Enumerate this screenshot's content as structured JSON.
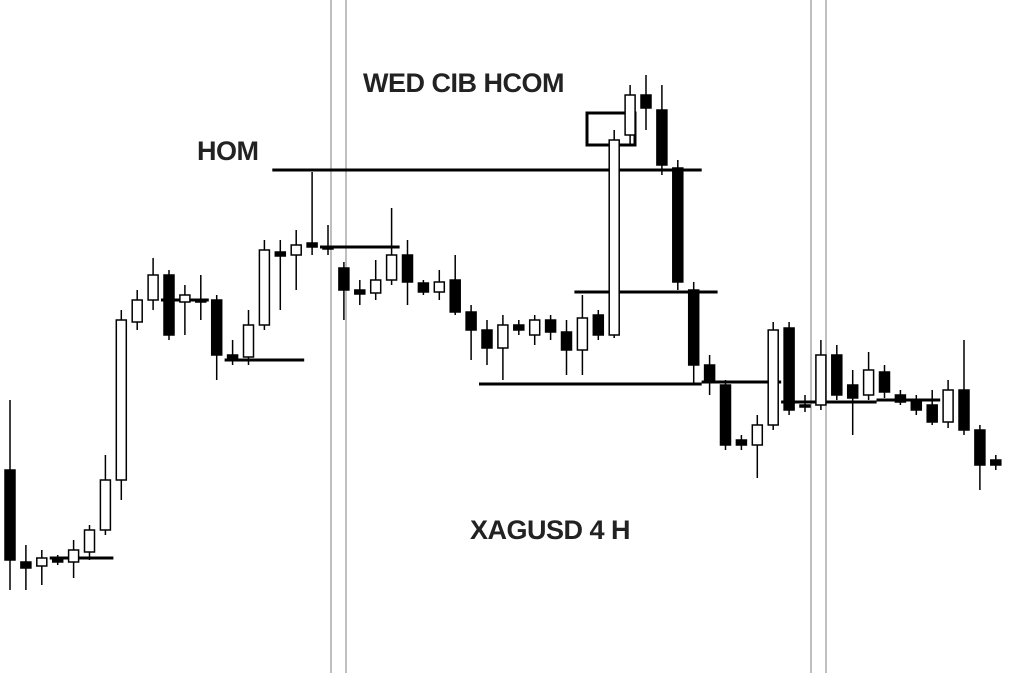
{
  "chart_data": {
    "type": "candlestick",
    "title": "XAGUSD 4 H",
    "annotations": [
      "HOM",
      "WED CIB HCOM"
    ],
    "ylim": [
      0,
      673
    ],
    "up_color": "#ffffff",
    "down_color": "#000000",
    "level_color": "#000000",
    "open": [
      203,
      111,
      107,
      115,
      111,
      121,
      143,
      193,
      351,
      373,
      398,
      371,
      373,
      373,
      318,
      316,
      348,
      421,
      418,
      430,
      426,
      405,
      383,
      380,
      393,
      418,
      390,
      381,
      393,
      361,
      343,
      325,
      348,
      338,
      353,
      341,
      323,
      358,
      338,
      538,
      578,
      563,
      505,
      383,
      308,
      288,
      233,
      228,
      248,
      345,
      268,
      268,
      318,
      288,
      278,
      301,
      278,
      271,
      268,
      251,
      283,
      243,
      213
    ],
    "high": [
      273,
      128,
      123,
      118,
      133,
      148,
      218,
      363,
      383,
      415,
      403,
      388,
      398,
      378,
      333,
      363,
      433,
      433,
      443,
      501,
      448,
      411,
      393,
      413,
      465,
      433,
      393,
      403,
      418,
      368,
      353,
      358,
      353,
      358,
      358,
      353,
      378,
      363,
      543,
      588,
      598,
      588,
      513,
      391,
      318,
      293,
      238,
      258,
      351,
      351,
      278,
      333,
      328,
      303,
      321,
      308,
      283,
      278,
      283,
      293,
      333,
      248,
      218
    ],
    "low": [
      83,
      83,
      88,
      108,
      95,
      113,
      138,
      173,
      343,
      363,
      333,
      338,
      353,
      293,
      308,
      308,
      343,
      363,
      383,
      418,
      418,
      353,
      368,
      373,
      388,
      368,
      378,
      373,
      358,
      313,
      308,
      293,
      338,
      328,
      333,
      298,
      298,
      333,
      335,
      528,
      543,
      498,
      383,
      288,
      278,
      223,
      223,
      195,
      243,
      258,
      261,
      263,
      273,
      238,
      273,
      275,
      268,
      258,
      248,
      245,
      238,
      183,
      203
    ],
    "close": [
      113,
      105,
      115,
      111,
      123,
      143,
      193,
      353,
      373,
      398,
      338,
      378,
      372,
      318,
      313,
      348,
      423,
      417,
      428,
      426,
      425,
      383,
      379,
      393,
      418,
      391,
      381,
      391,
      361,
      343,
      325,
      348,
      343,
      353,
      341,
      323,
      355,
      338,
      533,
      578,
      565,
      508,
      391,
      308,
      291,
      228,
      228,
      248,
      343,
      263,
      267,
      318,
      278,
      275,
      303,
      281,
      271,
      263,
      251,
      283,
      243,
      208,
      208
    ],
    "levels": [
      {
        "value": 503,
        "from": 17,
        "to": 43
      },
      {
        "value": 426,
        "from": 20,
        "to": 24
      },
      {
        "value": 381,
        "from": 36,
        "to": 44
      },
      {
        "value": 289,
        "from": 30,
        "to": 43
      },
      {
        "value": 313,
        "from": 14,
        "to": 18
      },
      {
        "value": 373,
        "from": 10,
        "to": 12
      },
      {
        "value": 115,
        "from": 3,
        "to": 6
      },
      {
        "value": 291,
        "from": 44,
        "to": 48
      },
      {
        "value": 271,
        "from": 49,
        "to": 54
      },
      {
        "value": 273,
        "from": 55,
        "to": 58
      }
    ]
  }
}
